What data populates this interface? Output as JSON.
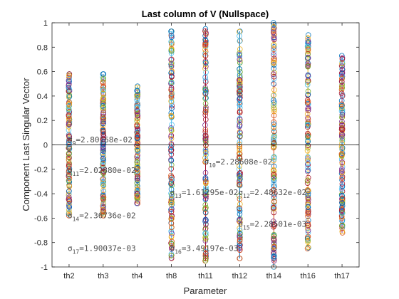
{
  "chart_data": {
    "type": "scatter",
    "title": "Last column of V (Nullspace)",
    "xlabel": "Parameter",
    "ylabel": "Component Last Singular Vector",
    "ylim": [
      -1,
      1
    ],
    "yticks": [
      "-1",
      "-0.8",
      "-0.6",
      "-0.4",
      "-0.2",
      "0",
      "0.2",
      "0.4",
      "0.6",
      "0.8",
      "1"
    ],
    "categories": [
      "th2",
      "th3",
      "th4",
      "th8",
      "th11",
      "th12",
      "th14",
      "th16",
      "th17"
    ],
    "grid": false,
    "marker": "open-circle",
    "reference_line_y": 0,
    "series_colors": [
      "#0072BD",
      "#D95319",
      "#EDB120",
      "#7E2F8E",
      "#77AC30",
      "#4DBEEE",
      "#A2142F"
    ],
    "column_ranges": [
      {
        "category": "th2",
        "min": -0.58,
        "max": 0.58
      },
      {
        "category": "th3",
        "min": -0.58,
        "max": 0.58
      },
      {
        "category": "th4",
        "min": -0.48,
        "max": 0.48
      },
      {
        "category": "th8",
        "min": -0.93,
        "max": 0.93
      },
      {
        "category": "th11",
        "min": -0.95,
        "max": 0.95
      },
      {
        "category": "th12",
        "min": -0.93,
        "max": 0.93
      },
      {
        "category": "th14",
        "min": -1.0,
        "max": 1.0
      },
      {
        "category": "th16",
        "min": -0.85,
        "max": 0.9
      },
      {
        "category": "th17",
        "min": -0.72,
        "max": 0.73
      }
    ],
    "annotations": [
      {
        "sym": "σ",
        "sub": "9",
        "text": "=2.80168e-02",
        "x": "th2",
        "y": 0.02
      },
      {
        "sym": "σ",
        "sub": "11",
        "text": "=2.02880e-02",
        "x": "th2",
        "y": -0.23
      },
      {
        "sym": "σ",
        "sub": "14",
        "text": "=2.36736e-02",
        "x": "th2",
        "y": -0.6
      },
      {
        "sym": "σ",
        "sub": "17",
        "text": "=1.90037e-03",
        "x": "th2",
        "y": -0.87
      },
      {
        "sym": "σ",
        "sub": "10",
        "text": "=2.28608e-02",
        "x": "th11",
        "y": -0.16
      },
      {
        "sym": "σ",
        "sub": "13",
        "text": "=1.61295e-02",
        "x": "th8",
        "y": -0.41
      },
      {
        "sym": "σ",
        "sub": "12",
        "text": "=2.48632e-02",
        "x": "th12",
        "y": -0.41
      },
      {
        "sym": "σ",
        "sub": "15",
        "text": "=2.28501e-03",
        "x": "th12",
        "y": -0.67
      },
      {
        "sym": "σ",
        "sub": "16",
        "text": "=3.49197e-03",
        "x": "th8",
        "y": -0.87
      }
    ]
  }
}
